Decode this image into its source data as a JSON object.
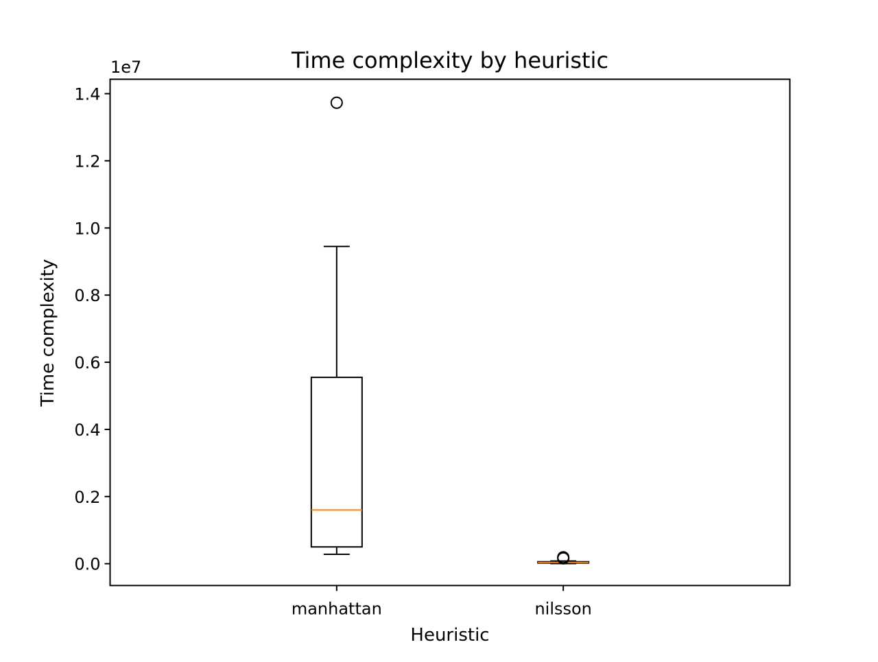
{
  "chart_data": {
    "type": "box",
    "title": "Time complexity by heuristic",
    "xlabel": "Heuristic",
    "ylabel": "Time complexity",
    "y_offset_label": "1e7",
    "y_scale_multiplier": 10000000,
    "ylim": [
      -0.065,
      1.443
    ],
    "yticks": [
      0.0,
      0.2,
      0.4,
      0.6,
      0.8,
      1.0,
      1.2,
      1.4
    ],
    "ytick_labels": [
      "0.0",
      "0.2",
      "0.4",
      "0.6",
      "0.8",
      "1.0",
      "1.2",
      "1.4"
    ],
    "categories": [
      "manhattan",
      "nilsson"
    ],
    "boxes": [
      {
        "category": "manhattan",
        "whisker_low": 0.028,
        "q1": 0.05,
        "median": 0.16,
        "q3": 0.555,
        "whisker_high": 0.945,
        "outliers": [
          1.373
        ]
      },
      {
        "category": "nilsson",
        "whisker_low": 0.0005,
        "q1": 0.002,
        "median": 0.004,
        "q3": 0.006,
        "whisker_high": 0.008,
        "outliers": [
          0.016,
          0.019
        ]
      }
    ],
    "colors": {
      "median": "#ff7f0e",
      "box": "#000000",
      "axes": "#000000",
      "background": "#ffffff"
    },
    "grid": false,
    "legend": "none"
  }
}
